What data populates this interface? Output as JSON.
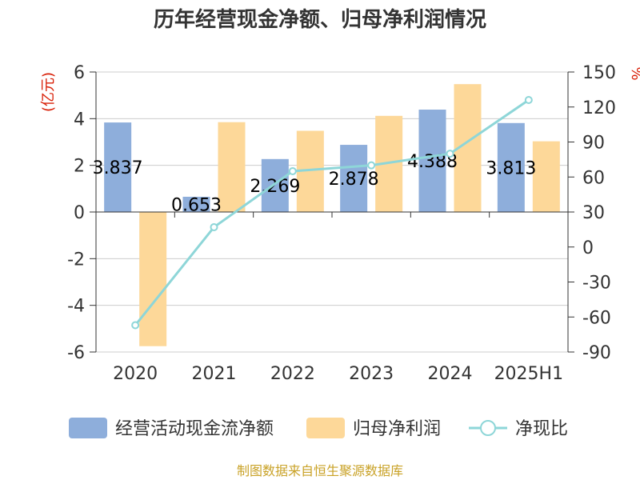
{
  "chart_data": {
    "type": "bar",
    "title": "历年经营现金净额、归母净利润情况",
    "categories": [
      "2020",
      "2021",
      "2022",
      "2023",
      "2024",
      "2025H1"
    ],
    "series": [
      {
        "name": "经营活动现金流净额",
        "type": "bar",
        "axis": "left",
        "color": "#8eaedb",
        "values": [
          3.837,
          0.653,
          2.269,
          2.878,
          4.388,
          3.813
        ],
        "labels": [
          "3.837",
          "0.653",
          "2.269",
          "2.878",
          "4.388",
          "3.813"
        ]
      },
      {
        "name": "归母净利润",
        "type": "bar",
        "axis": "left",
        "color": "#fdd899",
        "values": [
          -5.75,
          3.85,
          3.48,
          4.12,
          5.48,
          3.03
        ]
      },
      {
        "name": "净现比",
        "type": "line",
        "axis": "right",
        "color": "#8ed6d8",
        "values": [
          -67,
          17,
          65,
          70,
          80,
          126
        ]
      }
    ],
    "y_left": {
      "unit": "(亿元)",
      "ylim": [
        -6,
        6
      ],
      "ticks": [
        -6,
        -4,
        -2,
        0,
        2,
        4,
        6
      ]
    },
    "y_right": {
      "unit": "%",
      "ylim": [
        -90,
        150
      ],
      "ticks": [
        -90,
        -60,
        -30,
        0,
        30,
        60,
        90,
        120,
        150
      ]
    },
    "grid": true,
    "legend_position": "bottom",
    "source": "制图数据来自恒生聚源数据库"
  }
}
